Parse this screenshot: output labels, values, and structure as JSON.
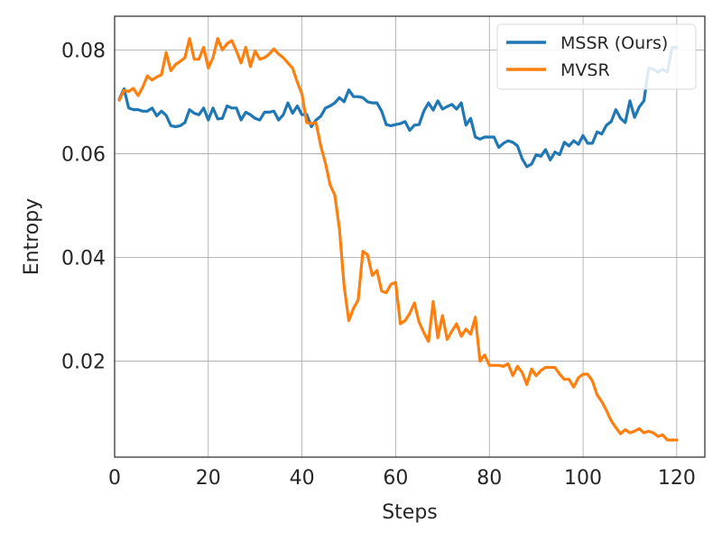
{
  "chart_data": {
    "type": "line",
    "title": "",
    "xlabel": "Steps",
    "ylabel": "Entropy",
    "xlim": [
      0,
      126
    ],
    "ylim": [
      0.0015,
      0.0865
    ],
    "xticks": [
      0,
      20,
      40,
      60,
      80,
      100,
      120
    ],
    "yticks": [
      0.02,
      0.04,
      0.06,
      0.08
    ],
    "xtick_labels": [
      "0",
      "20",
      "40",
      "60",
      "80",
      "100",
      "120"
    ],
    "ytick_labels": [
      "0.02",
      "0.04",
      "0.06",
      "0.08"
    ],
    "grid": true,
    "legend_position": "top-right",
    "series": [
      {
        "name": "MSSR (Ours)",
        "color": "#1f77b4",
        "x": [
          1,
          2,
          3,
          4,
          5,
          6,
          7,
          8,
          9,
          10,
          11,
          12,
          13,
          14,
          15,
          16,
          17,
          18,
          19,
          20,
          21,
          22,
          23,
          24,
          25,
          26,
          27,
          28,
          29,
          30,
          31,
          32,
          33,
          34,
          35,
          36,
          37,
          38,
          39,
          40,
          41,
          42,
          43,
          44,
          45,
          46,
          47,
          48,
          49,
          50,
          51,
          52,
          53,
          54,
          55,
          56,
          57,
          58,
          59,
          60,
          61,
          62,
          63,
          64,
          65,
          66,
          67,
          68,
          69,
          70,
          71,
          72,
          73,
          74,
          75,
          76,
          77,
          78,
          79,
          80,
          81,
          82,
          83,
          84,
          85,
          86,
          87,
          88,
          89,
          90,
          91,
          92,
          93,
          94,
          95,
          96,
          97,
          98,
          99,
          100,
          101,
          102,
          103,
          104,
          105,
          106,
          107,
          108,
          109,
          110,
          111,
          112,
          113,
          114,
          115,
          116,
          117,
          118,
          119,
          120
        ],
        "y": [
          0.0705,
          0.0725,
          0.0688,
          0.0685,
          0.0685,
          0.0682,
          0.0682,
          0.0688,
          0.0673,
          0.0682,
          0.0674,
          0.0654,
          0.0652,
          0.0654,
          0.066,
          0.0685,
          0.0678,
          0.0675,
          0.0688,
          0.0665,
          0.0688,
          0.0667,
          0.0668,
          0.0692,
          0.0688,
          0.0688,
          0.0665,
          0.068,
          0.0675,
          0.0668,
          0.0665,
          0.068,
          0.068,
          0.0682,
          0.0665,
          0.0675,
          0.0698,
          0.0678,
          0.0692,
          0.0675,
          0.0676,
          0.0652,
          0.0665,
          0.0672,
          0.0688,
          0.0692,
          0.0698,
          0.0708,
          0.07,
          0.0723,
          0.071,
          0.071,
          0.0708,
          0.07,
          0.0698,
          0.0698,
          0.0682,
          0.0656,
          0.0654,
          0.0656,
          0.0658,
          0.0662,
          0.0645,
          0.0655,
          0.0656,
          0.0682,
          0.0698,
          0.0684,
          0.0702,
          0.0686,
          0.0691,
          0.0695,
          0.0686,
          0.0698,
          0.0655,
          0.0668,
          0.0632,
          0.0628,
          0.0632,
          0.0632,
          0.0632,
          0.0612,
          0.062,
          0.0625,
          0.0622,
          0.0615,
          0.059,
          0.0575,
          0.058,
          0.0598,
          0.0595,
          0.0608,
          0.0588,
          0.0603,
          0.0598,
          0.0622,
          0.0615,
          0.0625,
          0.0618,
          0.0635,
          0.062,
          0.062,
          0.0642,
          0.0638,
          0.0655,
          0.0662,
          0.0685,
          0.0668,
          0.066,
          0.0702,
          0.067,
          0.069,
          0.0702,
          0.0765,
          0.0763,
          0.0757,
          0.0763,
          0.0757,
          0.0805,
          0.0805
        ]
      },
      {
        "name": "MVSR",
        "color": "#ff7f0e",
        "x": [
          1,
          2,
          3,
          4,
          5,
          6,
          7,
          8,
          9,
          10,
          11,
          12,
          13,
          14,
          15,
          16,
          17,
          18,
          19,
          20,
          21,
          22,
          23,
          24,
          25,
          26,
          27,
          28,
          29,
          30,
          31,
          32,
          33,
          34,
          35,
          36,
          37,
          38,
          39,
          40,
          41,
          42,
          43,
          44,
          45,
          46,
          47,
          48,
          49,
          50,
          51,
          52,
          53,
          54,
          55,
          56,
          57,
          58,
          59,
          60,
          61,
          62,
          63,
          64,
          65,
          66,
          67,
          68,
          69,
          70,
          71,
          72,
          73,
          74,
          75,
          76,
          77,
          78,
          79,
          80,
          81,
          82,
          83,
          84,
          85,
          86,
          87,
          88,
          89,
          90,
          91,
          92,
          93,
          94,
          95,
          96,
          97,
          98,
          99,
          100,
          101,
          102,
          103,
          104,
          105,
          106,
          107,
          108,
          109,
          110,
          111,
          112,
          113,
          114,
          115,
          116,
          117,
          118,
          119,
          120
        ],
        "y": [
          0.0703,
          0.0722,
          0.072,
          0.0726,
          0.0712,
          0.0728,
          0.075,
          0.0742,
          0.0748,
          0.0752,
          0.0795,
          0.076,
          0.0772,
          0.0778,
          0.0785,
          0.0822,
          0.0782,
          0.0782,
          0.0805,
          0.0765,
          0.0785,
          0.0822,
          0.08,
          0.0812,
          0.0818,
          0.0798,
          0.0775,
          0.0805,
          0.0768,
          0.0798,
          0.0782,
          0.0785,
          0.0792,
          0.0802,
          0.0792,
          0.0785,
          0.0775,
          0.0765,
          0.0738,
          0.0715,
          0.066,
          0.0658,
          0.066,
          0.0615,
          0.0582,
          0.054,
          0.052,
          0.0455,
          0.0345,
          0.0278,
          0.0302,
          0.0318,
          0.0412,
          0.0405,
          0.0365,
          0.0375,
          0.0335,
          0.0332,
          0.0348,
          0.0352,
          0.0272,
          0.0278,
          0.0292,
          0.0312,
          0.0275,
          0.0255,
          0.0238,
          0.0315,
          0.0245,
          0.0288,
          0.0242,
          0.0258,
          0.0272,
          0.0248,
          0.0262,
          0.0252,
          0.0285,
          0.02,
          0.0212,
          0.0192,
          0.0192,
          0.0192,
          0.019,
          0.0195,
          0.0172,
          0.019,
          0.0178,
          0.0155,
          0.0185,
          0.0172,
          0.0182,
          0.0188,
          0.0188,
          0.0188,
          0.0175,
          0.0165,
          0.0165,
          0.015,
          0.0168,
          0.0175,
          0.0175,
          0.0162,
          0.0135,
          0.0122,
          0.0105,
          0.0085,
          0.0072,
          0.006,
          0.0068,
          0.0062,
          0.0065,
          0.007,
          0.0062,
          0.0065,
          0.0062,
          0.0055,
          0.0058,
          0.0048,
          0.0048,
          0.0048
        ]
      }
    ]
  }
}
